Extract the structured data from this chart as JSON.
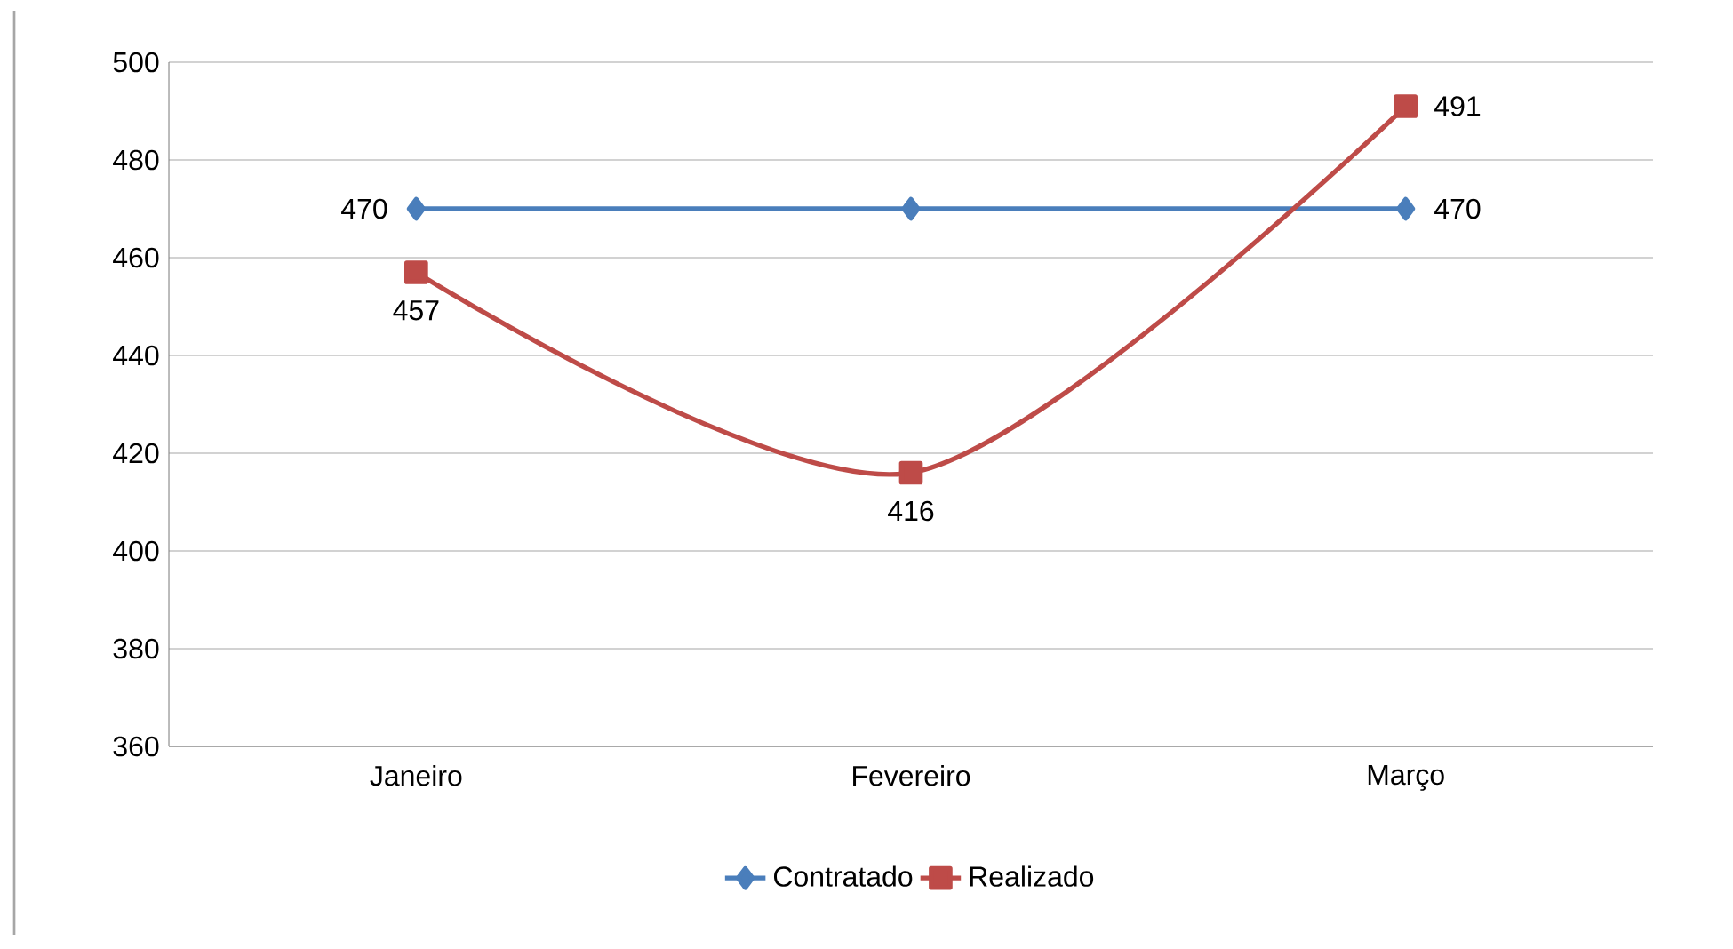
{
  "chart_data": {
    "type": "line",
    "categories": [
      "Janeiro",
      "Fevereiro",
      "Março"
    ],
    "series": [
      {
        "name": "Contratado",
        "color": "#4a7ebb",
        "marker": "diamond",
        "values": [
          470,
          470,
          470
        ],
        "value_labels": [
          "470",
          null,
          "470"
        ]
      },
      {
        "name": "Realizado",
        "color": "#be4b48",
        "marker": "square",
        "values": [
          457,
          416,
          491
        ],
        "value_labels": [
          "457",
          "416",
          "491"
        ]
      }
    ],
    "ylim": [
      360,
      500
    ],
    "yticks": [
      360,
      380,
      400,
      420,
      440,
      460,
      480,
      500
    ],
    "grid": "y",
    "legend": "bottom"
  }
}
